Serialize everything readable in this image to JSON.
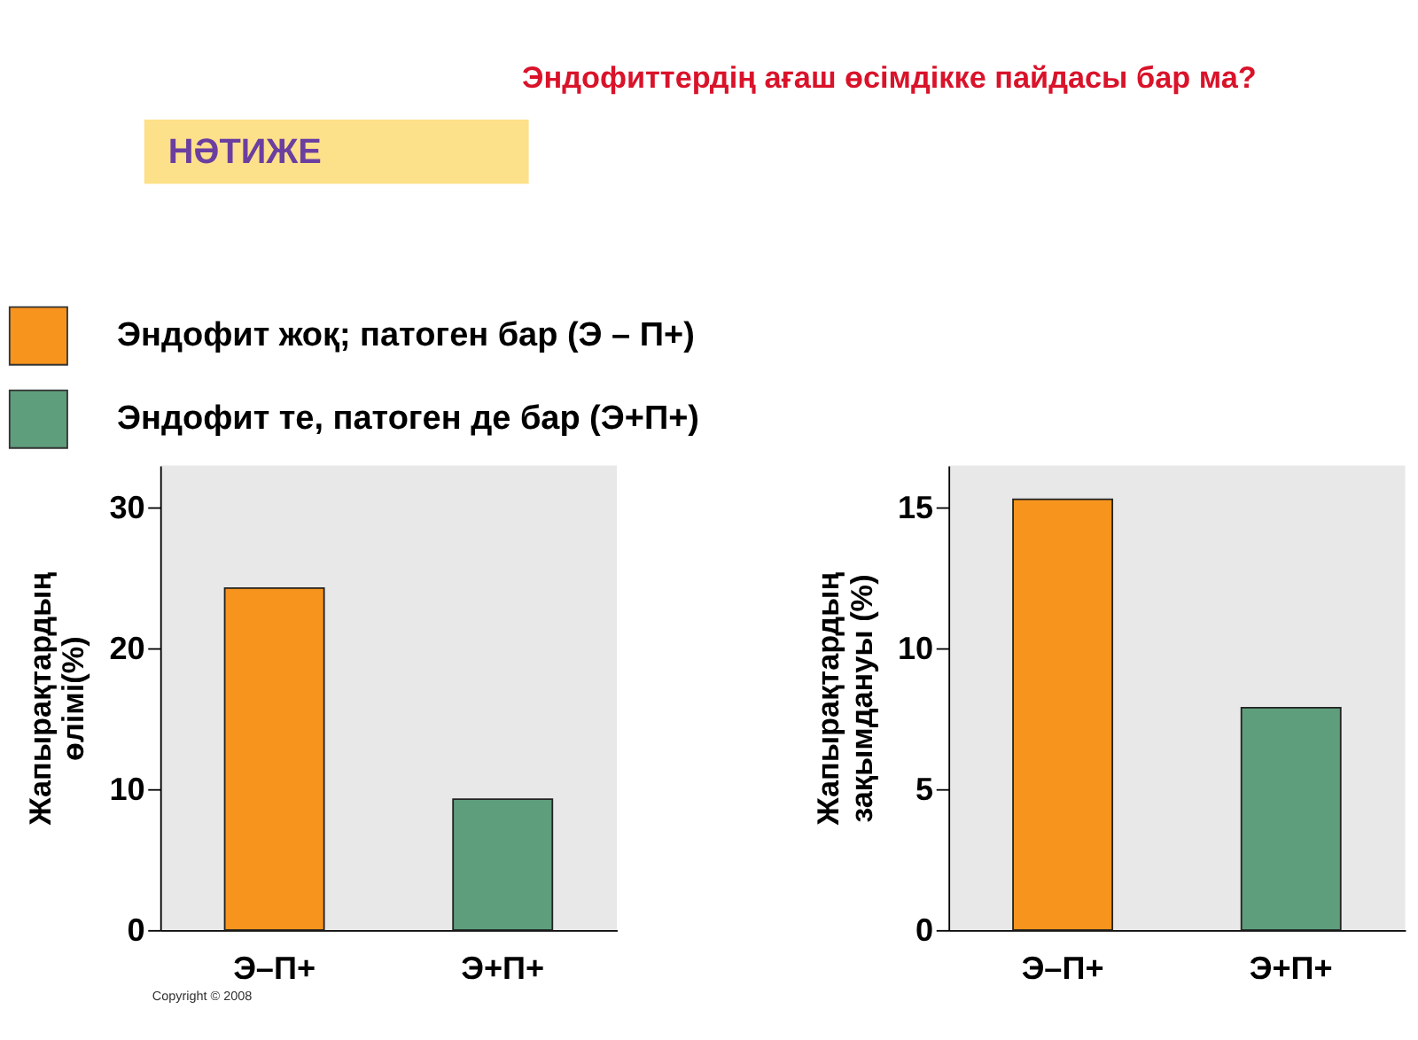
{
  "chart_data": [
    {
      "type": "bar",
      "title": "Эндофиттердің ағаш өсімдікке пайдасы бар ма?",
      "subtitle": "НӘТИЖЕ",
      "categories": [
        "Э–П+",
        "Э+П+"
      ],
      "ylabel": "Жапырақтардың\nөлімі(%)",
      "ylim": [
        0,
        33
      ],
      "yticks": [
        0,
        10,
        20,
        30
      ],
      "legend": "top left",
      "grid": false,
      "series": [
        {
          "name": "Эндофит жоқ; патоген бар (Э – П+)",
          "color": "#f7941d",
          "values": [
            24.3,
            null
          ]
        },
        {
          "name": "Эндофит те, патоген де бар (Э+П+)",
          "color": "#5e9e7c",
          "values": [
            null,
            9.3
          ]
        }
      ],
      "annotations": [
        "Copyright © 2008"
      ]
    },
    {
      "type": "bar",
      "categories": [
        "Э–П+",
        "Э+П+"
      ],
      "ylabel": "Жапырақтардың\nзақымдануы (%)",
      "ylim": [
        0,
        16.5
      ],
      "yticks": [
        0,
        5,
        10,
        15
      ],
      "grid": false,
      "series": [
        {
          "color": "#f7941d",
          "values": [
            15.3,
            null
          ]
        },
        {
          "color": "#5e9e7c",
          "values": [
            null,
            7.9
          ]
        }
      ]
    }
  ]
}
